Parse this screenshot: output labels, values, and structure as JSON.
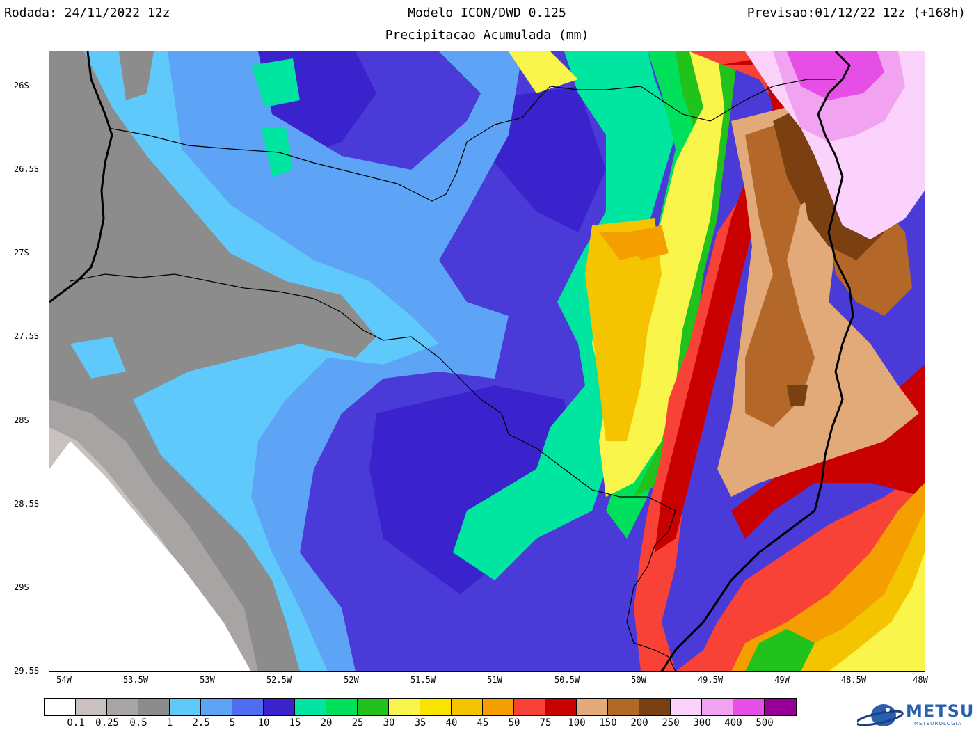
{
  "header": {
    "run": "Rodada: 24/11/2022 12z",
    "model": "Modelo ICON/DWD 0.125",
    "valid": "Previsao:01/12/22 12z (+168h)",
    "subtitle": "Precipitacao Acumulada (mm)"
  },
  "axes": {
    "lat_labels": [
      "26S",
      "26.5S",
      "27S",
      "27.5S",
      "28S",
      "28.5S",
      "29S",
      "29.5S"
    ],
    "lon_labels": [
      "54W",
      "53.5W",
      "53W",
      "52.5W",
      "52W",
      "51.5W",
      "51W",
      "50.5W",
      "50W",
      "49.5W",
      "49W",
      "48.5W",
      "48W"
    ],
    "lat_range": [
      -29.5,
      -25.8
    ],
    "lon_range": [
      -54.1,
      -48.0
    ]
  },
  "legend": {
    "colors": [
      "#ffffff",
      "#c9c0c0",
      "#a8a4a4",
      "#8c8c8c",
      "#5fc9fb",
      "#5ea4f6",
      "#4e6df0",
      "#3a23cc",
      "#00e6a0",
      "#00e05a",
      "#22c21c",
      "#faf54a",
      "#f8e400",
      "#f5c400",
      "#f59e00",
      "#f84238",
      "#c80000",
      "#e1aa78",
      "#b3682a",
      "#7a4012",
      "#fbd2fb",
      "#f1a2f1",
      "#e64fe6",
      "#970098"
    ],
    "labels": [
      "0.1",
      "0.25",
      "0.5",
      "1",
      "2.5",
      "5",
      "10",
      "15",
      "20",
      "25",
      "30",
      "35",
      "40",
      "45",
      "50",
      "75",
      "100",
      "150",
      "200",
      "250",
      "300",
      "400",
      "500"
    ]
  },
  "logo": {
    "name": "METSUL",
    "tagline": "METEOROLOGIA"
  }
}
